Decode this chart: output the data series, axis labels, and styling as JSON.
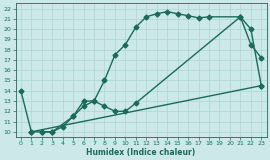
{
  "xlabel": "Humidex (Indice chaleur)",
  "bg_color": "#cde8e8",
  "line_color": "#1a6b5a",
  "grid_color": "#b0d8d8",
  "xlim": [
    -0.5,
    23.5
  ],
  "ylim": [
    9.5,
    22.5
  ],
  "xticks": [
    0,
    1,
    2,
    3,
    4,
    5,
    6,
    7,
    8,
    9,
    10,
    11,
    12,
    13,
    14,
    15,
    16,
    17,
    18,
    19,
    20,
    21,
    22,
    23
  ],
  "yticks": [
    10,
    11,
    12,
    13,
    14,
    15,
    16,
    17,
    18,
    19,
    20,
    21,
    22
  ],
  "line1_x": [
    0,
    1,
    2,
    3,
    4,
    5,
    6,
    7,
    8,
    9,
    10,
    11,
    12,
    13,
    14,
    15,
    16,
    17,
    18,
    21,
    22,
    23
  ],
  "line1_y": [
    14,
    10,
    10.0,
    10.0,
    10.5,
    11.5,
    12.5,
    13.0,
    15.0,
    17.5,
    18.5,
    20.2,
    21.2,
    21.5,
    21.7,
    21.5,
    21.3,
    21.1,
    21.2,
    21.2,
    20.0,
    14.5
  ],
  "line2_x": [
    2,
    3,
    5,
    6,
    7,
    8,
    9,
    10,
    11,
    21,
    22,
    23
  ],
  "line2_y": [
    10,
    10.0,
    11.5,
    13.0,
    13.0,
    12.5,
    12.0,
    12.0,
    12.8,
    21.2,
    18.5,
    17.2
  ],
  "line3_x": [
    1,
    23
  ],
  "line3_y": [
    10,
    14.5
  ],
  "markersize": 2.5,
  "linewidth": 1.0
}
